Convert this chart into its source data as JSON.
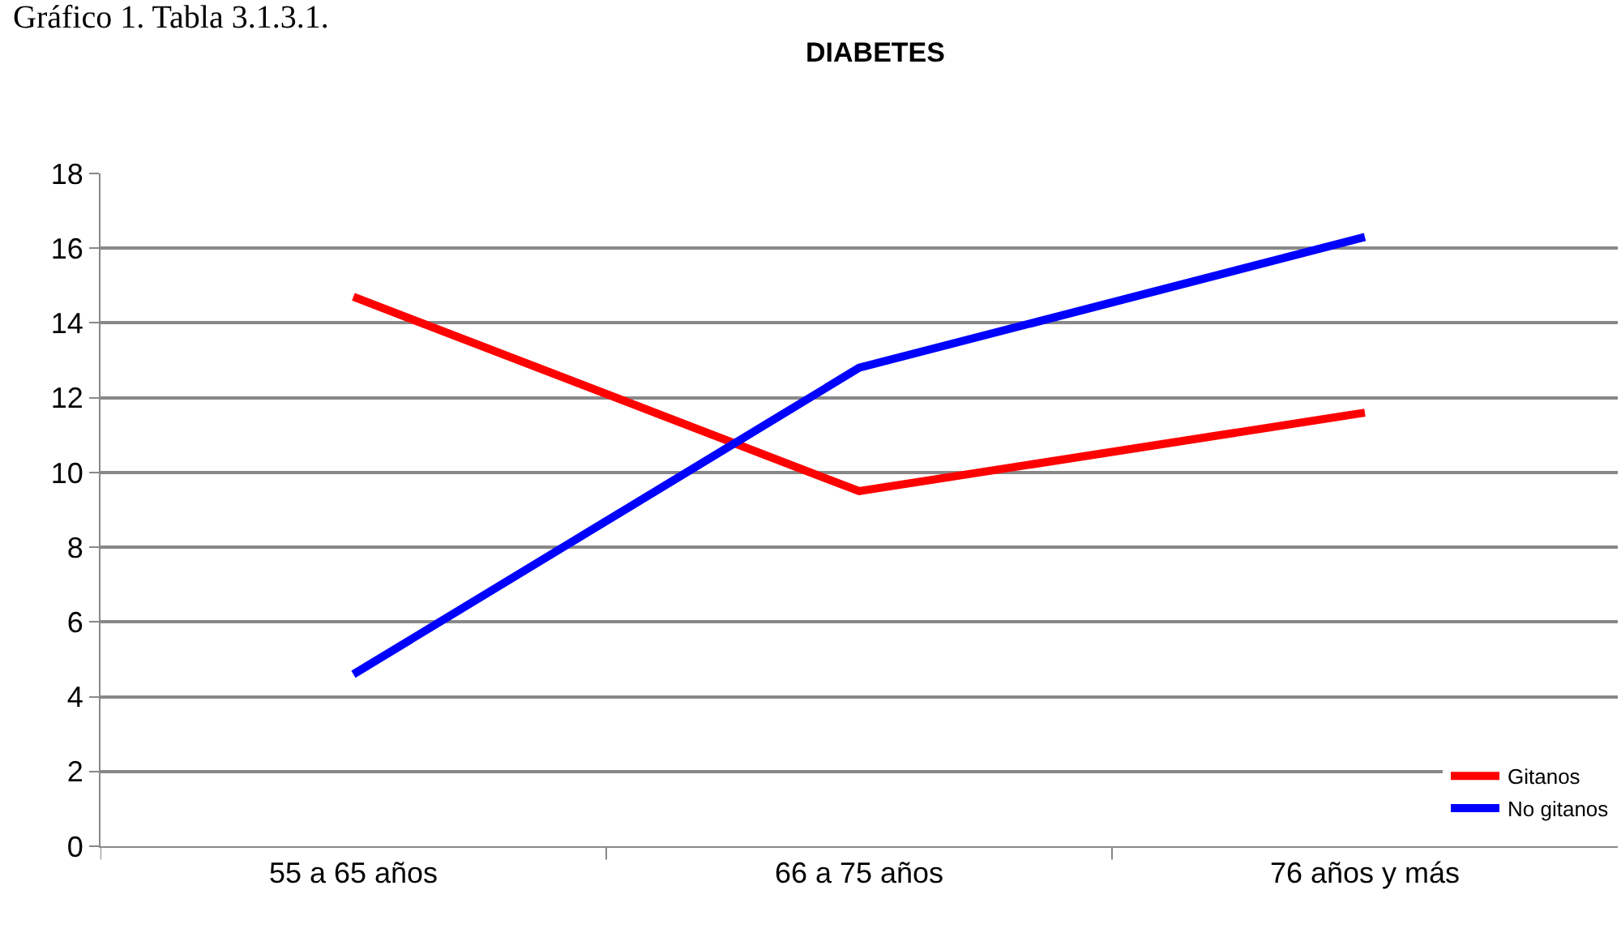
{
  "chart_data": {
    "type": "line",
    "title": "DIABETES",
    "annotations": [
      "Gráfico 1. Tabla 3.1.3.1."
    ],
    "categories": [
      "55 a 65 años",
      "66 a 75 años",
      "76 años y más"
    ],
    "series": [
      {
        "name": "Gitanos",
        "color": "#ff0000",
        "values": [
          14.7,
          9.5,
          11.6
        ]
      },
      {
        "name": "No gitanos",
        "color": "#0000ff",
        "values": [
          4.6,
          12.8,
          16.3
        ]
      }
    ],
    "ylim": [
      0,
      18
    ],
    "yticks": [
      0,
      2,
      4,
      6,
      8,
      10,
      12,
      14,
      16,
      18
    ],
    "grid": "y",
    "legend": "bottom right",
    "marker": "none",
    "line_style": "solid"
  }
}
